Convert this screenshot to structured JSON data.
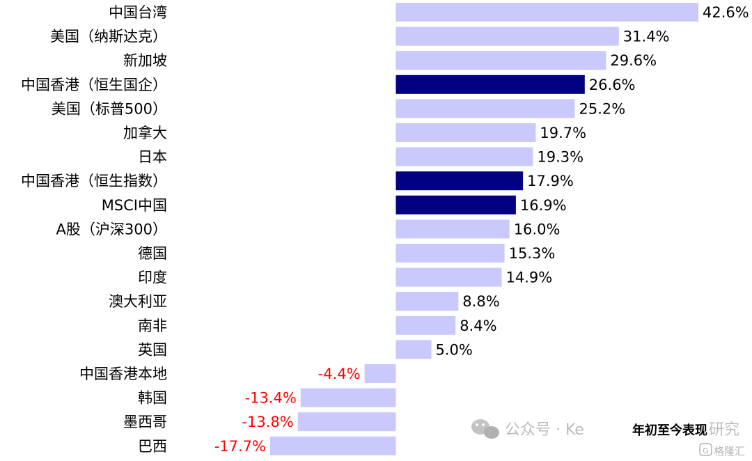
{
  "chart_data": {
    "type": "bar",
    "orientation": "horizontal",
    "categories": [
      "中国台湾",
      "美国（纳斯达克）",
      "新加坡",
      "中国香港（恒生国企）",
      "美国（标普500）",
      "加拿大",
      "日本",
      "中国香港（恒生指数）",
      "MSCI中国",
      "A股（沪深300）",
      "德国",
      "印度",
      "澳大利亚",
      "南非",
      "英国",
      "中国香港本地",
      "韩国",
      "墨西哥",
      "巴西"
    ],
    "values": [
      42.6,
      31.4,
      29.6,
      26.6,
      25.2,
      19.7,
      19.3,
      17.9,
      16.9,
      16.0,
      15.3,
      14.9,
      8.8,
      8.4,
      5.0,
      -4.4,
      -13.4,
      -13.8,
      -17.7
    ],
    "value_labels": [
      "42.6%",
      "31.4%",
      "29.6%",
      "26.6%",
      "25.2%",
      "19.7%",
      "19.3%",
      "17.9%",
      "16.9%",
      "16.0%",
      "15.3%",
      "14.9%",
      "8.8%",
      "8.4%",
      "5.0%",
      "-4.4%",
      "-13.4%",
      "-13.8%",
      "-17.7%"
    ],
    "highlighted": [
      "中国香港（恒生国企）",
      "中国香港（恒生指数）",
      "MSCI中国"
    ],
    "series": [
      {
        "name": "年初至今表现"
      }
    ],
    "legend_position": "bottom-right",
    "grid": false,
    "xlim": [
      -17.7,
      42.6
    ],
    "colors": {
      "bar": "#c9c9fb",
      "highlight": "#000080",
      "positive_label": "#000000",
      "negative_label": "#ff0000"
    }
  },
  "watermark": {
    "text": "公众号 · Ke",
    "overlay_text": "研究",
    "brand_text": "格隆汇",
    "icon": "wechat-icon"
  }
}
